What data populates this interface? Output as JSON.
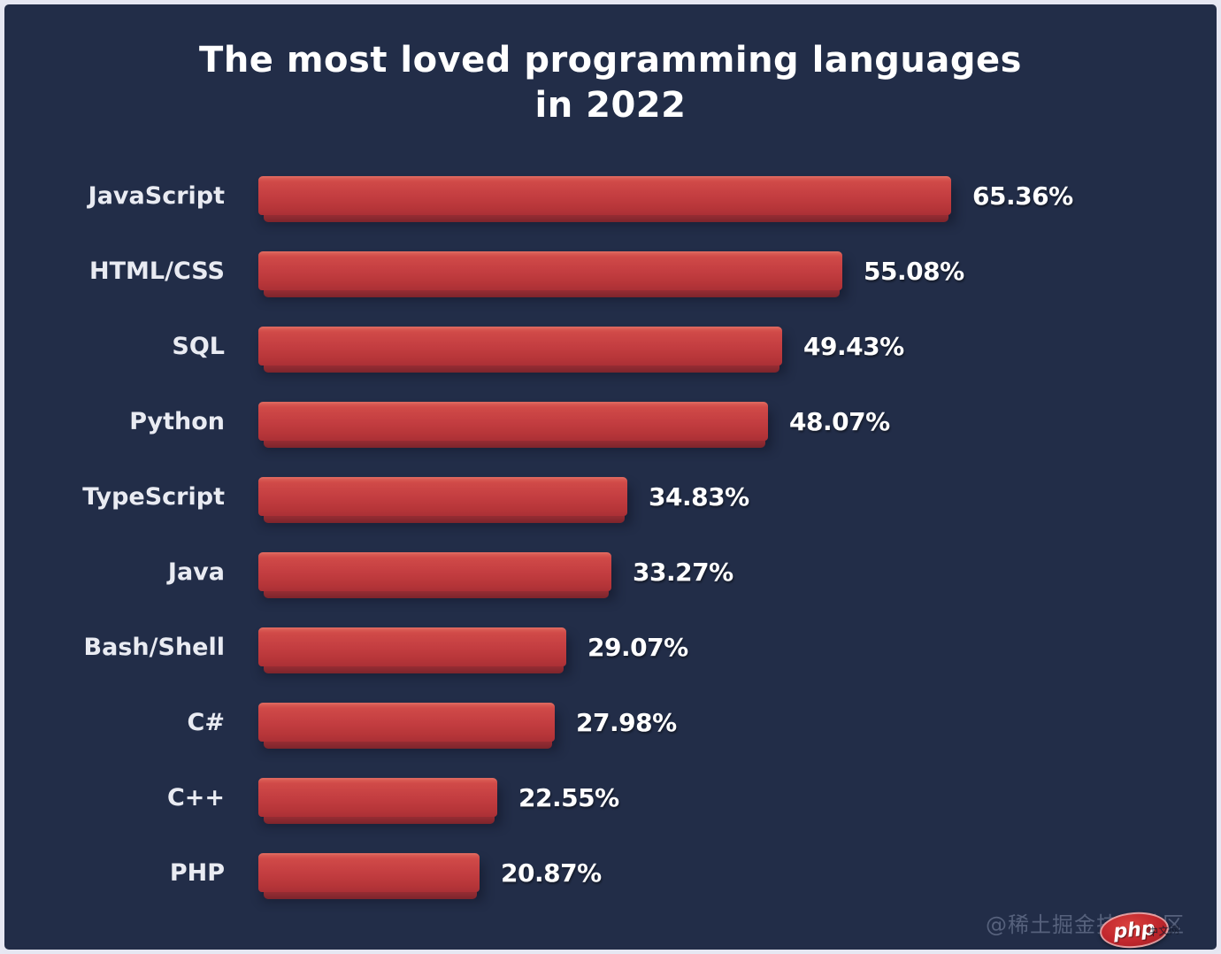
{
  "chart_data": {
    "type": "bar",
    "orientation": "horizontal",
    "title": "The most loved programming languages in 2022",
    "categories": [
      "JavaScript",
      "HTML/CSS",
      "SQL",
      "Python",
      "TypeScript",
      "Java",
      "Bash/Shell",
      "C#",
      "C++",
      "PHP"
    ],
    "values": [
      65.36,
      55.08,
      49.43,
      48.07,
      34.83,
      33.27,
      29.07,
      27.98,
      22.55,
      20.87
    ],
    "value_labels": [
      "65.36%",
      "55.08%",
      "49.43%",
      "48.07%",
      "34.83%",
      "33.27%",
      "29.07%",
      "27.98%",
      "22.55%",
      "20.87%"
    ],
    "xlim": [
      0,
      65.36
    ],
    "grid": false,
    "legend": null,
    "bar_color": "#c43e41",
    "bar_bevel_color": "#7d252c",
    "background_color": "#222d48",
    "label_color": "#e9ebf2",
    "value_color": "#ffffff"
  },
  "watermark": {
    "text": "@稀土掘金技术社区",
    "logo_text": "php",
    "logo_suffix": "中文网",
    "logo_color": "#c1272d"
  }
}
